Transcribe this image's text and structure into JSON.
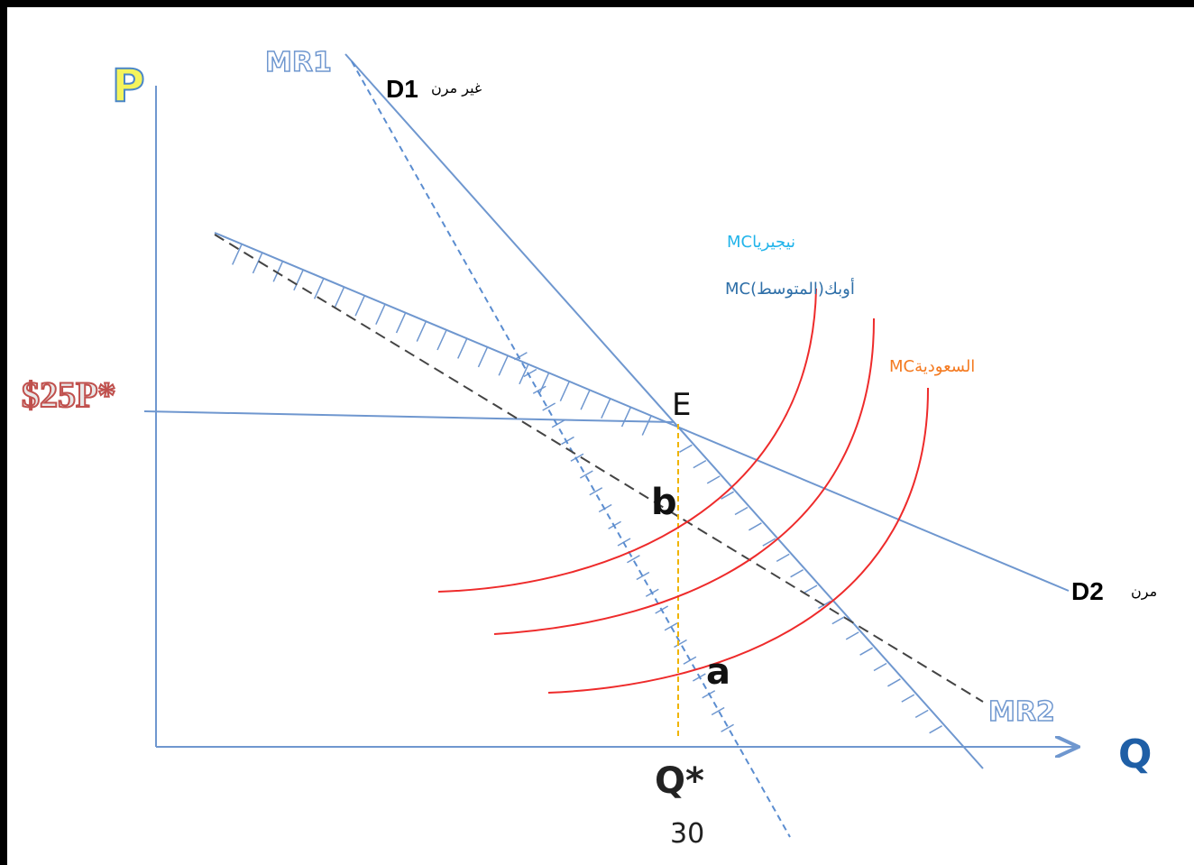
{
  "diagram": {
    "axes": {
      "y_label": "P",
      "x_label": "Q"
    },
    "curves": {
      "mr1": "MR1",
      "mr2": "MR2",
      "d1": "D1",
      "d1_note": "غير مرن",
      "d2": "D2",
      "d2_note": "مرن"
    },
    "price_label": "$25P*",
    "quantity_label": "Q*",
    "quantity_value": "30",
    "points": {
      "e": "E",
      "b": "b",
      "a": "a"
    },
    "mc_labels": {
      "nigeria": "MCنيجيريا",
      "opec_avg": "MC(المتوسط)أوبك",
      "saudi": "MCالسعودية"
    },
    "colors": {
      "demand": "#6f97cf",
      "mr_dashed": "#5b8dd0",
      "black_dashed": "#444444",
      "mc_curves": "#ee2b2b",
      "guide": "#f0b400",
      "axis": "#6f97cf"
    }
  }
}
